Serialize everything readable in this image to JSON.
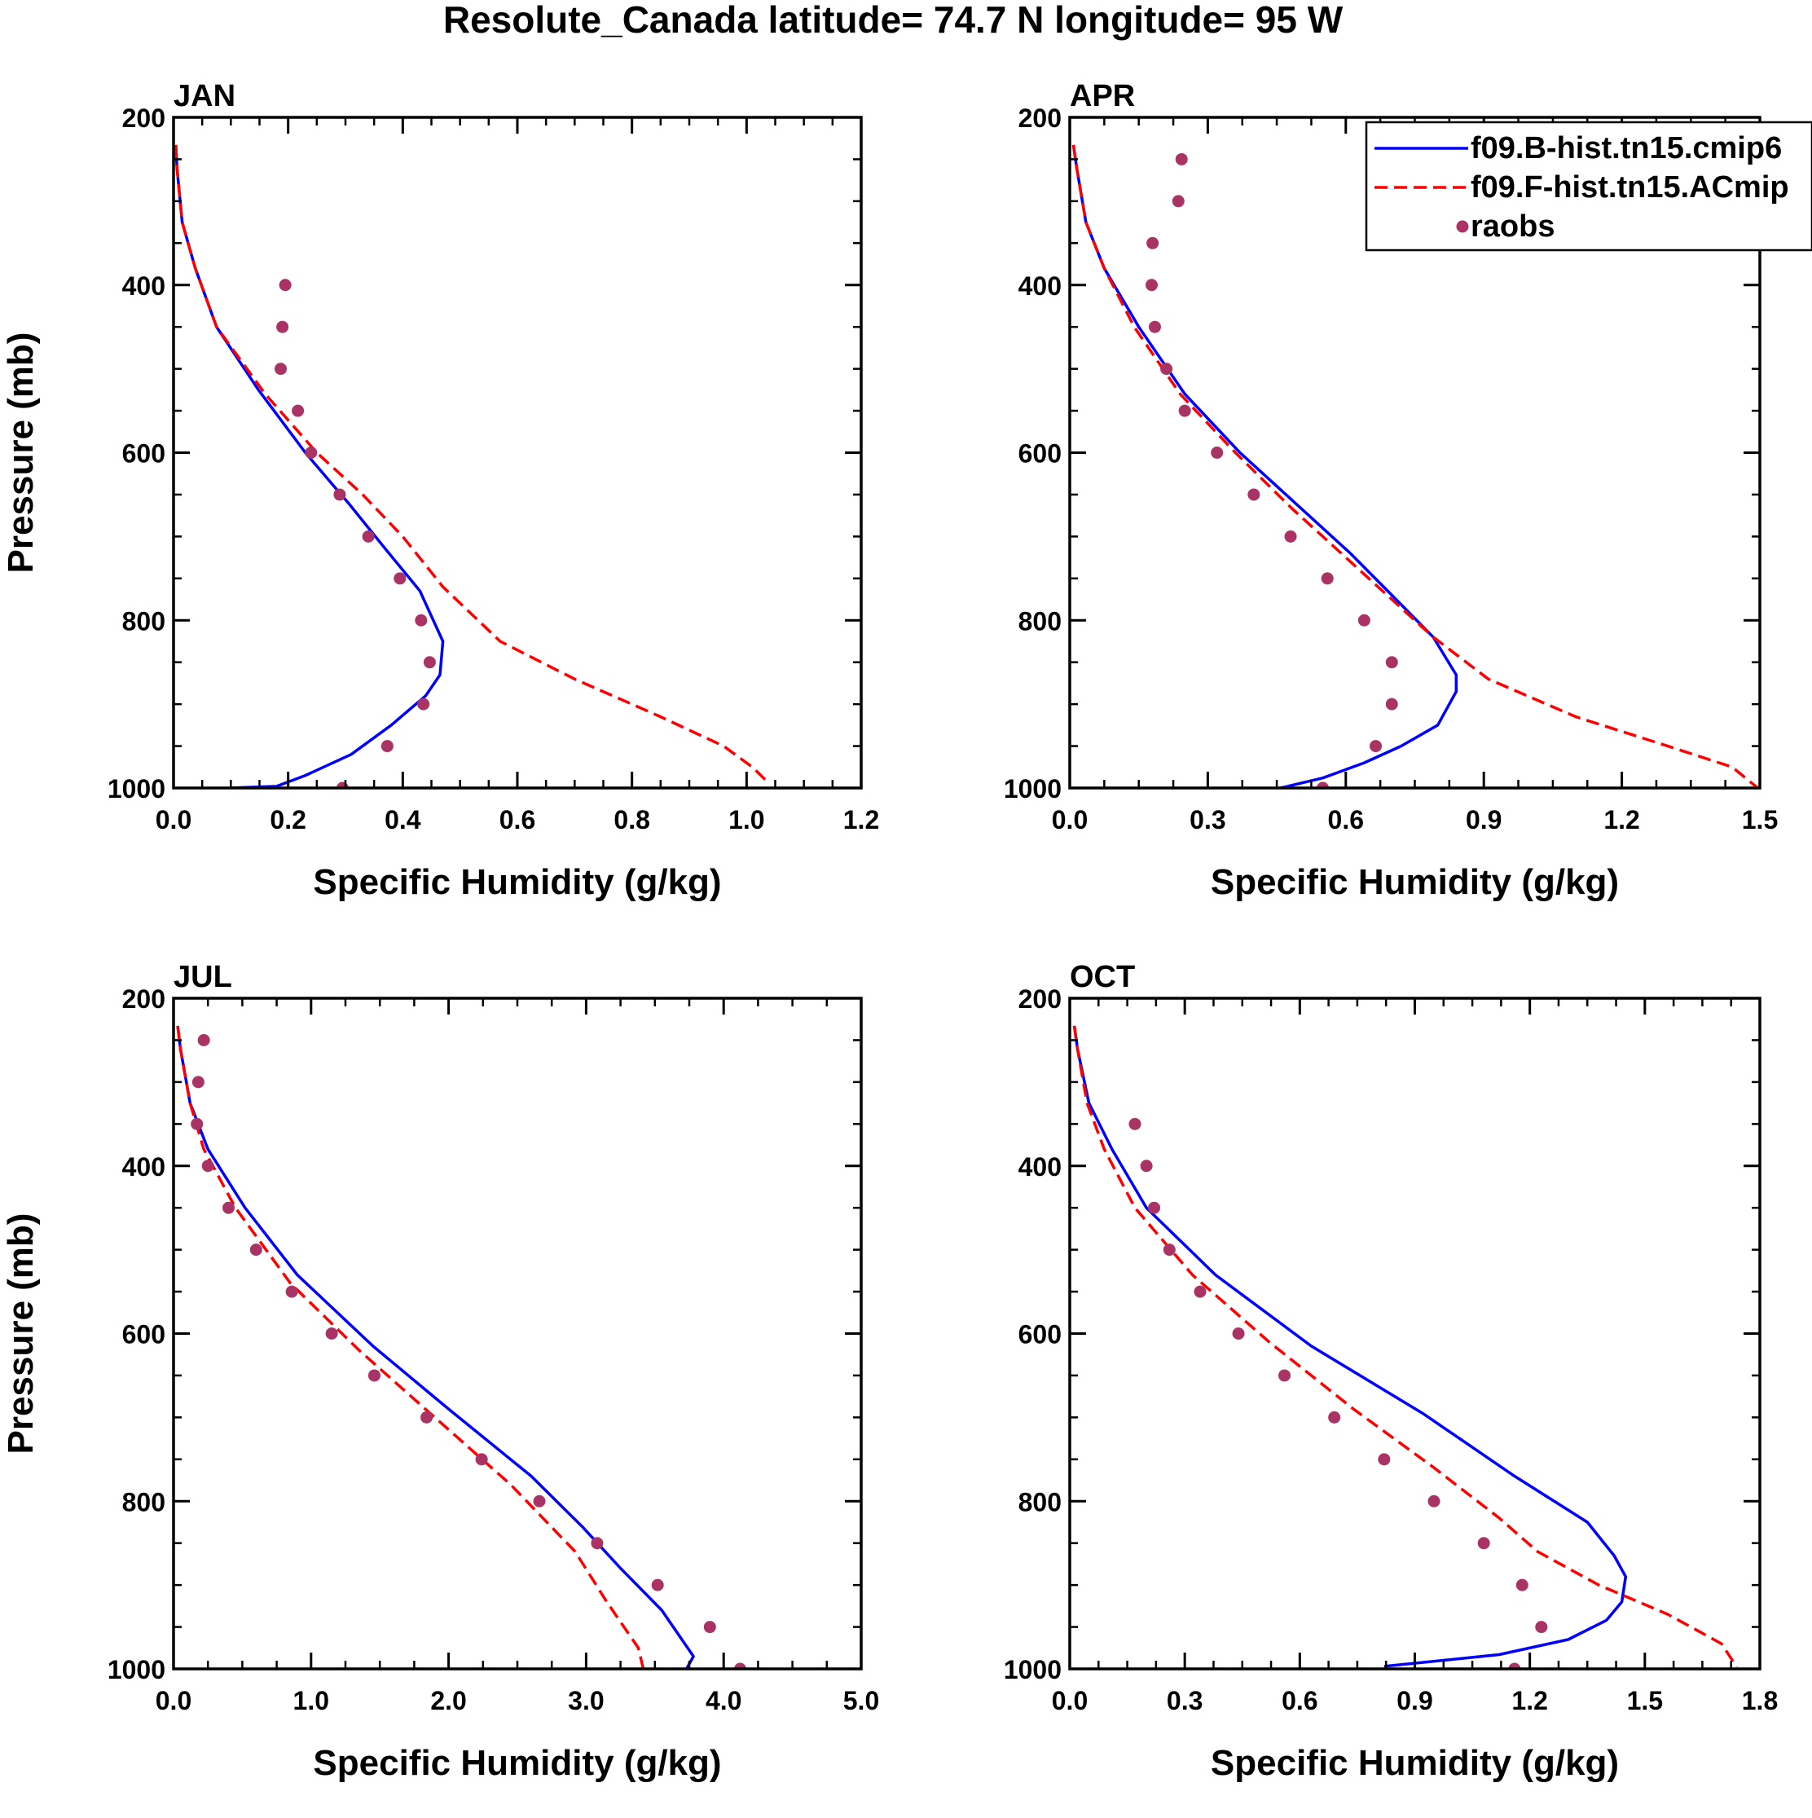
{
  "figure_title": "Resolute_Canada  latitude= 74.7 N longitude= 95 W",
  "series_styles": {
    "model_b": {
      "color": "#0000ff",
      "dash": "solid"
    },
    "model_f": {
      "color": "#ff0000",
      "dash": "dashed"
    },
    "raobs": {
      "color": "#aa3366",
      "marker": "dot"
    }
  },
  "legend": {
    "panel": "APR",
    "location": "top-right",
    "entries": [
      "f09.B-hist.tn15.cmip6",
      "f09.F-hist.tn15.ACmip",
      "raobs"
    ]
  },
  "chart_data": [
    {
      "type": "line",
      "panel": "JAN",
      "title": "JAN",
      "xlabel": "Specific Humidity (g/kg)",
      "ylabel": "Pressure (mb)",
      "xlim": [
        0,
        1.2
      ],
      "ylim": [
        200,
        1000
      ],
      "y_inverted": true,
      "xticks": [
        0,
        0.2,
        0.4,
        0.6,
        0.8,
        1.0,
        1.2
      ],
      "xticklabels": [
        "0.0",
        "0.2",
        "0.4",
        "0.6",
        "0.8",
        "1.0",
        "1.2"
      ],
      "yticks": [
        200,
        400,
        600,
        800,
        1000
      ],
      "yticklabels": [
        "200",
        "400",
        "600",
        "800",
        "1000"
      ],
      "series": [
        {
          "name": "f09.B-hist.tn15.cmip6",
          "style": "model_b",
          "x": [
            0.004,
            0.006,
            0.015,
            0.038,
            0.075,
            0.148,
            0.23,
            0.305,
            0.37,
            0.43,
            0.47,
            0.465,
            0.44,
            0.38,
            0.31,
            0.23,
            0.18,
            0.1
          ],
          "y": [
            233,
            260,
            325,
            380,
            450,
            525,
            600,
            660,
            715,
            765,
            825,
            865,
            890,
            925,
            960,
            985,
            998,
            1000
          ]
        },
        {
          "name": "f09.F-hist.tn15.ACmip",
          "style": "model_f",
          "x": [
            0.004,
            0.006,
            0.015,
            0.038,
            0.075,
            0.16,
            0.25,
            0.33,
            0.4,
            0.47,
            0.57,
            0.7,
            0.85,
            0.96,
            1.01,
            1.04
          ],
          "y": [
            233,
            260,
            325,
            380,
            450,
            530,
            600,
            650,
            700,
            760,
            825,
            870,
            915,
            950,
            975,
            995
          ]
        },
        {
          "name": "raobs",
          "style": "raobs",
          "mode": "markers",
          "x": [
            0.195,
            0.19,
            0.187,
            0.217,
            0.24,
            0.29,
            0.34,
            0.395,
            0.432,
            0.447,
            0.436,
            0.373,
            0.295
          ],
          "y": [
            400,
            450,
            500,
            550,
            600,
            650,
            700,
            750,
            800,
            850,
            900,
            950,
            1000
          ]
        }
      ]
    },
    {
      "type": "line",
      "panel": "APR",
      "title": "APR",
      "xlabel": "Specific Humidity (g/kg)",
      "ylabel": "",
      "xlim": [
        0,
        1.5
      ],
      "ylim": [
        200,
        1000
      ],
      "y_inverted": true,
      "xticks": [
        0,
        0.3,
        0.6,
        0.9,
        1.2,
        1.5
      ],
      "xticklabels": [
        "0.0",
        "0.3",
        "0.6",
        "0.9",
        "1.2",
        "1.5"
      ],
      "yticks": [
        200,
        400,
        600,
        800,
        1000
      ],
      "yticklabels": [
        "200",
        "400",
        "600",
        "800",
        "1000"
      ],
      "series": [
        {
          "name": "f09.B-hist.tn15.cmip6",
          "style": "model_b",
          "x": [
            0.008,
            0.015,
            0.035,
            0.075,
            0.15,
            0.25,
            0.37,
            0.5,
            0.61,
            0.7,
            0.79,
            0.84,
            0.84,
            0.8,
            0.72,
            0.64,
            0.55,
            0.42
          ],
          "y": [
            233,
            260,
            325,
            380,
            450,
            530,
            600,
            665,
            720,
            770,
            820,
            865,
            885,
            925,
            950,
            970,
            988,
            1005
          ]
        },
        {
          "name": "f09.F-hist.tn15.ACmip",
          "style": "model_f",
          "x": [
            0.008,
            0.015,
            0.035,
            0.075,
            0.14,
            0.24,
            0.36,
            0.48,
            0.59,
            0.69,
            0.79,
            0.91,
            1.1,
            1.3,
            1.44,
            1.5
          ],
          "y": [
            233,
            260,
            325,
            380,
            450,
            530,
            600,
            665,
            720,
            770,
            820,
            870,
            915,
            950,
            975,
            1002
          ]
        },
        {
          "name": "raobs",
          "style": "raobs",
          "mode": "markers",
          "x": [
            0.243,
            0.236,
            0.18,
            0.178,
            0.185,
            0.21,
            0.25,
            0.32,
            0.4,
            0.48,
            0.56,
            0.64,
            0.7,
            0.7,
            0.665,
            0.55
          ],
          "y": [
            250,
            300,
            350,
            400,
            450,
            500,
            550,
            600,
            650,
            700,
            750,
            800,
            850,
            900,
            950,
            1000
          ]
        }
      ]
    },
    {
      "type": "line",
      "panel": "JUL",
      "title": "JUL",
      "xlabel": "Specific Humidity (g/kg)",
      "ylabel": "Pressure (mb)",
      "xlim": [
        0,
        5.0
      ],
      "ylim": [
        200,
        1000
      ],
      "y_inverted": true,
      "xticks": [
        0,
        1.0,
        2.0,
        3.0,
        4.0,
        5.0
      ],
      "xticklabels": [
        "0.0",
        "1.0",
        "2.0",
        "3.0",
        "4.0",
        "5.0"
      ],
      "yticks": [
        200,
        400,
        600,
        800,
        1000
      ],
      "yticklabels": [
        "200",
        "400",
        "600",
        "800",
        "1000"
      ],
      "series": [
        {
          "name": "f09.B-hist.tn15.cmip6",
          "style": "model_b",
          "x": [
            0.03,
            0.05,
            0.12,
            0.25,
            0.52,
            0.9,
            1.45,
            2.0,
            2.6,
            2.97,
            3.25,
            3.55,
            3.78,
            3.72
          ],
          "y": [
            233,
            260,
            325,
            380,
            450,
            530,
            615,
            690,
            770,
            830,
            880,
            930,
            985,
            1003
          ]
        },
        {
          "name": "f09.F-hist.tn15.ACmip",
          "style": "model_f",
          "x": [
            0.03,
            0.05,
            0.12,
            0.22,
            0.45,
            0.85,
            1.35,
            1.9,
            2.45,
            2.92,
            3.15,
            3.38,
            3.42
          ],
          "y": [
            233,
            260,
            325,
            380,
            450,
            540,
            620,
            700,
            780,
            860,
            920,
            975,
            1003
          ]
        },
        {
          "name": "raobs",
          "style": "raobs",
          "mode": "markers",
          "x": [
            0.22,
            0.18,
            0.17,
            0.25,
            0.4,
            0.6,
            0.86,
            1.15,
            1.46,
            1.84,
            2.24,
            2.66,
            3.08,
            3.52,
            3.9,
            4.12
          ],
          "y": [
            250,
            300,
            350,
            400,
            450,
            500,
            550,
            600,
            650,
            700,
            750,
            800,
            850,
            900,
            950,
            1000
          ]
        }
      ]
    },
    {
      "type": "line",
      "panel": "OCT",
      "title": "OCT",
      "xlabel": "Specific Humidity (g/kg)",
      "ylabel": "",
      "xlim": [
        0,
        1.8
      ],
      "ylim": [
        200,
        1000
      ],
      "y_inverted": true,
      "xticks": [
        0,
        0.3,
        0.6,
        0.9,
        1.2,
        1.5,
        1.8
      ],
      "xticklabels": [
        "0.0",
        "0.3",
        "0.6",
        "0.9",
        "1.2",
        "1.5",
        "1.8"
      ],
      "yticks": [
        200,
        400,
        600,
        800,
        1000
      ],
      "yticklabels": [
        "200",
        "400",
        "600",
        "800",
        "1000"
      ],
      "series": [
        {
          "name": "f09.B-hist.tn15.cmip6",
          "style": "model_b",
          "x": [
            0.012,
            0.02,
            0.05,
            0.11,
            0.2,
            0.38,
            0.63,
            0.92,
            1.16,
            1.35,
            1.42,
            1.45,
            1.44,
            1.4,
            1.3,
            1.12,
            0.82
          ],
          "y": [
            233,
            260,
            325,
            380,
            450,
            530,
            615,
            695,
            770,
            825,
            865,
            890,
            920,
            942,
            965,
            983,
            997
          ]
        },
        {
          "name": "f09.F-hist.tn15.ACmip",
          "style": "model_f",
          "x": [
            0.012,
            0.02,
            0.045,
            0.09,
            0.17,
            0.32,
            0.52,
            0.74,
            0.95,
            1.12,
            1.22,
            1.38,
            1.56,
            1.7,
            1.74
          ],
          "y": [
            233,
            260,
            325,
            380,
            450,
            530,
            610,
            690,
            760,
            820,
            860,
            900,
            935,
            970,
            998
          ]
        },
        {
          "name": "raobs",
          "style": "raobs",
          "mode": "markers",
          "x": [
            0.17,
            0.2,
            0.22,
            0.26,
            0.34,
            0.44,
            0.56,
            0.69,
            0.82,
            0.95,
            1.08,
            1.18,
            1.23,
            1.16
          ],
          "y": [
            350,
            400,
            450,
            500,
            550,
            600,
            650,
            700,
            750,
            800,
            850,
            900,
            950,
            1000
          ]
        }
      ]
    }
  ]
}
